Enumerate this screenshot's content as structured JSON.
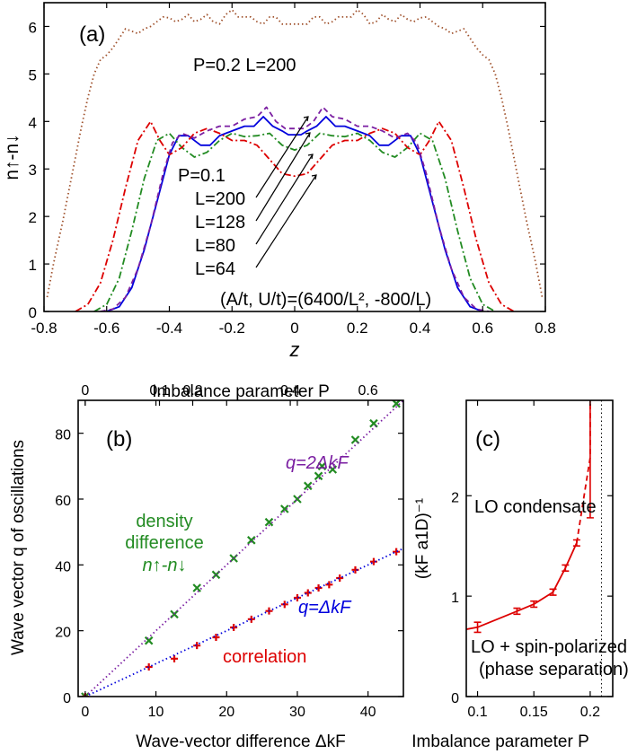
{
  "chart_data": [
    {
      "panel": "(a)",
      "type": "line",
      "xlabel": "z",
      "ylabel": "n↑-n↓",
      "xlim": [
        -0.8,
        0.8
      ],
      "ylim": [
        0,
        6.5
      ],
      "xticks": [
        "-0.8",
        "-0.6",
        "-0.4",
        "-0.2",
        "0",
        "0.2",
        "0.4",
        "0.6",
        "0.8"
      ],
      "yticks": [
        "0",
        "1",
        "2",
        "3",
        "4",
        "5",
        "6"
      ],
      "annotations": {
        "p02": "P=0.2 L=200",
        "p01": "P=0.1",
        "l200": "L=200",
        "l128": "L=128",
        "l80": "L=80",
        "l64": "L=64",
        "params": "(A/t, U/t)=(6400/L², -800/L)"
      },
      "series": [
        {
          "name": "P=0.2 L=200",
          "color": "#a0522d",
          "style": "dotted",
          "x": [
            -0.79,
            -0.77,
            -0.74,
            -0.71,
            -0.68,
            -0.66,
            -0.64,
            -0.62,
            -0.6,
            -0.58,
            -0.56,
            -0.54,
            -0.52,
            -0.5,
            -0.48,
            -0.46,
            -0.44,
            -0.42,
            -0.4,
            -0.38,
            -0.36,
            -0.34,
            -0.32,
            -0.3,
            -0.28,
            -0.26,
            -0.24,
            -0.22,
            -0.2,
            -0.18,
            -0.16,
            -0.14,
            -0.12,
            -0.1,
            -0.08,
            -0.06,
            -0.04,
            -0.02,
            0,
            0.02,
            0.04,
            0.06,
            0.08,
            0.1,
            0.12,
            0.14,
            0.16,
            0.18,
            0.2,
            0.22,
            0.24,
            0.26,
            0.28,
            0.3,
            0.32,
            0.34,
            0.36,
            0.38,
            0.4,
            0.42,
            0.44,
            0.46,
            0.48,
            0.5,
            0.52,
            0.54,
            0.56,
            0.58,
            0.6,
            0.62,
            0.64,
            0.66,
            0.68,
            0.71,
            0.74,
            0.77,
            0.79
          ],
          "y": [
            0.3,
            1.0,
            1.9,
            2.9,
            3.9,
            4.5,
            5.0,
            5.3,
            5.4,
            5.55,
            5.75,
            5.95,
            5.9,
            5.85,
            5.95,
            6.0,
            6.1,
            6.2,
            6.18,
            6.1,
            6.15,
            6.25,
            6.1,
            6.15,
            6.25,
            6.1,
            6.05,
            6.25,
            6.35,
            6.2,
            6.2,
            6.2,
            6.1,
            6.05,
            6.2,
            6.2,
            6.05,
            6.05,
            6.05,
            6.05,
            6.05,
            6.2,
            6.2,
            6.05,
            6.1,
            6.2,
            6.2,
            6.2,
            6.35,
            6.25,
            6.05,
            6.1,
            6.25,
            6.15,
            6.1,
            6.25,
            6.15,
            6.1,
            6.18,
            6.2,
            6.1,
            6.0,
            5.95,
            5.85,
            5.9,
            5.95,
            5.75,
            5.55,
            5.4,
            5.3,
            5.0,
            4.5,
            3.9,
            2.9,
            1.9,
            1.0,
            0.3
          ]
        },
        {
          "name": "L=200",
          "color": "#0000dd",
          "style": "solid",
          "x": [
            -0.6,
            -0.56,
            -0.52,
            -0.48,
            -0.44,
            -0.4,
            -0.37,
            -0.34,
            -0.3,
            -0.27,
            -0.24,
            -0.2,
            -0.16,
            -0.13,
            -0.1,
            -0.07,
            -0.04,
            -0.02,
            0,
            0.02,
            0.04,
            0.07,
            0.1,
            0.13,
            0.16,
            0.2,
            0.24,
            0.27,
            0.3,
            0.34,
            0.37,
            0.4,
            0.44,
            0.48,
            0.52,
            0.56,
            0.6
          ],
          "y": [
            0.0,
            0.1,
            0.5,
            1.3,
            2.3,
            3.3,
            3.7,
            3.7,
            3.5,
            3.5,
            3.7,
            3.8,
            3.9,
            3.9,
            4.1,
            3.9,
            3.8,
            3.72,
            3.72,
            3.72,
            3.8,
            3.9,
            4.1,
            3.9,
            3.9,
            3.8,
            3.7,
            3.5,
            3.5,
            3.7,
            3.7,
            3.3,
            2.3,
            1.3,
            0.5,
            0.1,
            0.0
          ]
        },
        {
          "name": "L=128",
          "color": "#228b22",
          "style": "dashdot",
          "x": [
            -0.64,
            -0.6,
            -0.56,
            -0.52,
            -0.48,
            -0.44,
            -0.4,
            -0.36,
            -0.32,
            -0.28,
            -0.24,
            -0.2,
            -0.16,
            -0.12,
            -0.08,
            -0.04,
            0,
            0.04,
            0.08,
            0.12,
            0.16,
            0.2,
            0.24,
            0.28,
            0.32,
            0.36,
            0.4,
            0.44,
            0.48,
            0.52,
            0.56,
            0.6,
            0.64
          ],
          "y": [
            0.0,
            0.15,
            0.7,
            1.7,
            2.8,
            3.6,
            3.75,
            3.45,
            3.25,
            3.35,
            3.6,
            3.75,
            3.68,
            3.7,
            3.75,
            3.5,
            3.4,
            3.5,
            3.75,
            3.7,
            3.68,
            3.75,
            3.6,
            3.35,
            3.25,
            3.45,
            3.75,
            3.6,
            2.8,
            1.7,
            0.7,
            0.15,
            0.0
          ]
        },
        {
          "name": "L=80",
          "color": "#dd0000",
          "style": "dashdot",
          "x": [
            -0.7,
            -0.66,
            -0.62,
            -0.58,
            -0.54,
            -0.5,
            -0.46,
            -0.43,
            -0.4,
            -0.36,
            -0.32,
            -0.28,
            -0.24,
            -0.2,
            -0.16,
            -0.12,
            -0.08,
            -0.04,
            0,
            0.04,
            0.08,
            0.12,
            0.16,
            0.2,
            0.24,
            0.28,
            0.32,
            0.36,
            0.4,
            0.43,
            0.46,
            0.5,
            0.54,
            0.58,
            0.62,
            0.66,
            0.7
          ],
          "y": [
            0.0,
            0.15,
            0.6,
            1.5,
            2.6,
            3.6,
            4.0,
            3.6,
            3.3,
            3.45,
            3.75,
            3.85,
            3.75,
            3.6,
            3.6,
            3.5,
            3.2,
            2.9,
            2.85,
            2.9,
            3.2,
            3.5,
            3.6,
            3.6,
            3.75,
            3.85,
            3.75,
            3.45,
            3.3,
            3.6,
            4.0,
            3.6,
            2.6,
            1.5,
            0.6,
            0.15,
            0.0
          ]
        },
        {
          "name": "L=64",
          "color": "#7b1fa2",
          "style": "dashed",
          "x": [
            -0.62,
            -0.58,
            -0.54,
            -0.5,
            -0.46,
            -0.42,
            -0.39,
            -0.36,
            -0.32,
            -0.28,
            -0.24,
            -0.2,
            -0.16,
            -0.12,
            -0.09,
            -0.06,
            -0.03,
            0,
            0.03,
            0.06,
            0.09,
            0.12,
            0.16,
            0.2,
            0.24,
            0.28,
            0.32,
            0.36,
            0.39,
            0.42,
            0.46,
            0.5,
            0.54,
            0.58,
            0.62
          ],
          "y": [
            0.0,
            0.05,
            0.3,
            0.9,
            1.8,
            2.9,
            3.55,
            3.75,
            3.65,
            3.8,
            3.9,
            3.9,
            4.05,
            4.1,
            4.3,
            4.0,
            3.85,
            3.85,
            3.85,
            4.0,
            4.3,
            4.1,
            4.05,
            3.9,
            3.9,
            3.8,
            3.65,
            3.75,
            3.55,
            2.9,
            1.8,
            0.9,
            0.3,
            0.05,
            0.0
          ]
        }
      ]
    },
    {
      "panel": "(b)",
      "type": "scatter",
      "xlabel": "Wave-vector difference ΔkF",
      "ylabel": "Wave vector q of oscillations",
      "x2label": "Imbalance parameter P",
      "xlim": [
        -1,
        45
      ],
      "ylim": [
        0,
        90
      ],
      "xticks": [
        "0",
        "10",
        "20",
        "30",
        "40"
      ],
      "yticks": [
        "0",
        "20",
        "40",
        "60",
        "80"
      ],
      "x2ticks": [
        {
          "label": "0",
          "x": 0
        },
        {
          "label": "0.1",
          "x": 10.5
        },
        {
          "label": "0.2",
          "x": 15.2
        },
        {
          "label": "0.4",
          "x": 29
        },
        {
          "label": "0.6",
          "x": 40
        }
      ],
      "annotations": {
        "q2": "q=2ΔkF",
        "q1": "q=ΔkF",
        "density1": "density",
        "density2": "difference",
        "density3": "n↑-n↓",
        "correlation": "correlation"
      },
      "series": [
        {
          "name": "density difference",
          "color": "#228b22",
          "marker": "x",
          "x": [
            0,
            9,
            12.6,
            15.8,
            18.5,
            21,
            23.5,
            26,
            28.2,
            30,
            31.5,
            33,
            33.5,
            35,
            38.2,
            40.8,
            44
          ],
          "y": [
            0,
            17,
            25,
            33,
            37,
            42,
            47.5,
            53,
            57,
            60,
            64,
            67,
            70,
            69,
            78,
            83,
            89
          ]
        },
        {
          "name": "correlation",
          "color": "#dd0000",
          "marker": "+",
          "x": [
            0,
            9,
            12.6,
            15.8,
            18.5,
            21,
            23.5,
            26,
            28.2,
            30,
            31.5,
            33,
            34.5,
            36,
            38.2,
            40.8,
            44
          ],
          "y": [
            0,
            9,
            11.5,
            15.5,
            18,
            21,
            23.5,
            26,
            28,
            30,
            31.5,
            33,
            34,
            36,
            38.5,
            41,
            44
          ]
        },
        {
          "name": "q=2ΔkF",
          "color": "#7b1fa2",
          "style": "dotted",
          "x": [
            0,
            45
          ],
          "y": [
            0,
            90
          ]
        },
        {
          "name": "q=ΔkF",
          "color": "#0000dd",
          "style": "dotted",
          "x": [
            0,
            45
          ],
          "y": [
            0,
            45
          ]
        }
      ]
    },
    {
      "panel": "(c)",
      "type": "line",
      "xlabel": "Imbalance parameter P",
      "ylabel": "(kF a1D)⁻¹",
      "xlim": [
        0.09,
        0.22
      ],
      "ylim": [
        0,
        2.95
      ],
      "xticks": [
        "0.1",
        "0.15",
        "0.2"
      ],
      "yticks": [
        "0",
        "1",
        "2"
      ],
      "vline": 0.21,
      "annotations": {
        "lo": "LO condensate",
        "lo_sp": "LO + spin-polarized",
        "phase": "(phase separation)"
      },
      "series": [
        {
          "name": "solid",
          "color": "#dd0000",
          "style": "solid",
          "x": [
            0.09,
            0.1,
            0.135,
            0.15,
            0.167,
            0.178,
            0.188
          ],
          "y": [
            0.67,
            0.69,
            0.85,
            0.92,
            1.04,
            1.28,
            1.53
          ],
          "err": [
            0,
            0.05,
            0.03,
            0.03,
            0.03,
            0.03,
            0.03
          ]
        },
        {
          "name": "dashed",
          "color": "#dd0000",
          "style": "dashed",
          "x": [
            0.188,
            0.196,
            0.2,
            0.2
          ],
          "y": [
            1.53,
            2.1,
            2.38,
            2.95
          ],
          "err": [
            0,
            0,
            0.6,
            0
          ]
        }
      ]
    }
  ]
}
